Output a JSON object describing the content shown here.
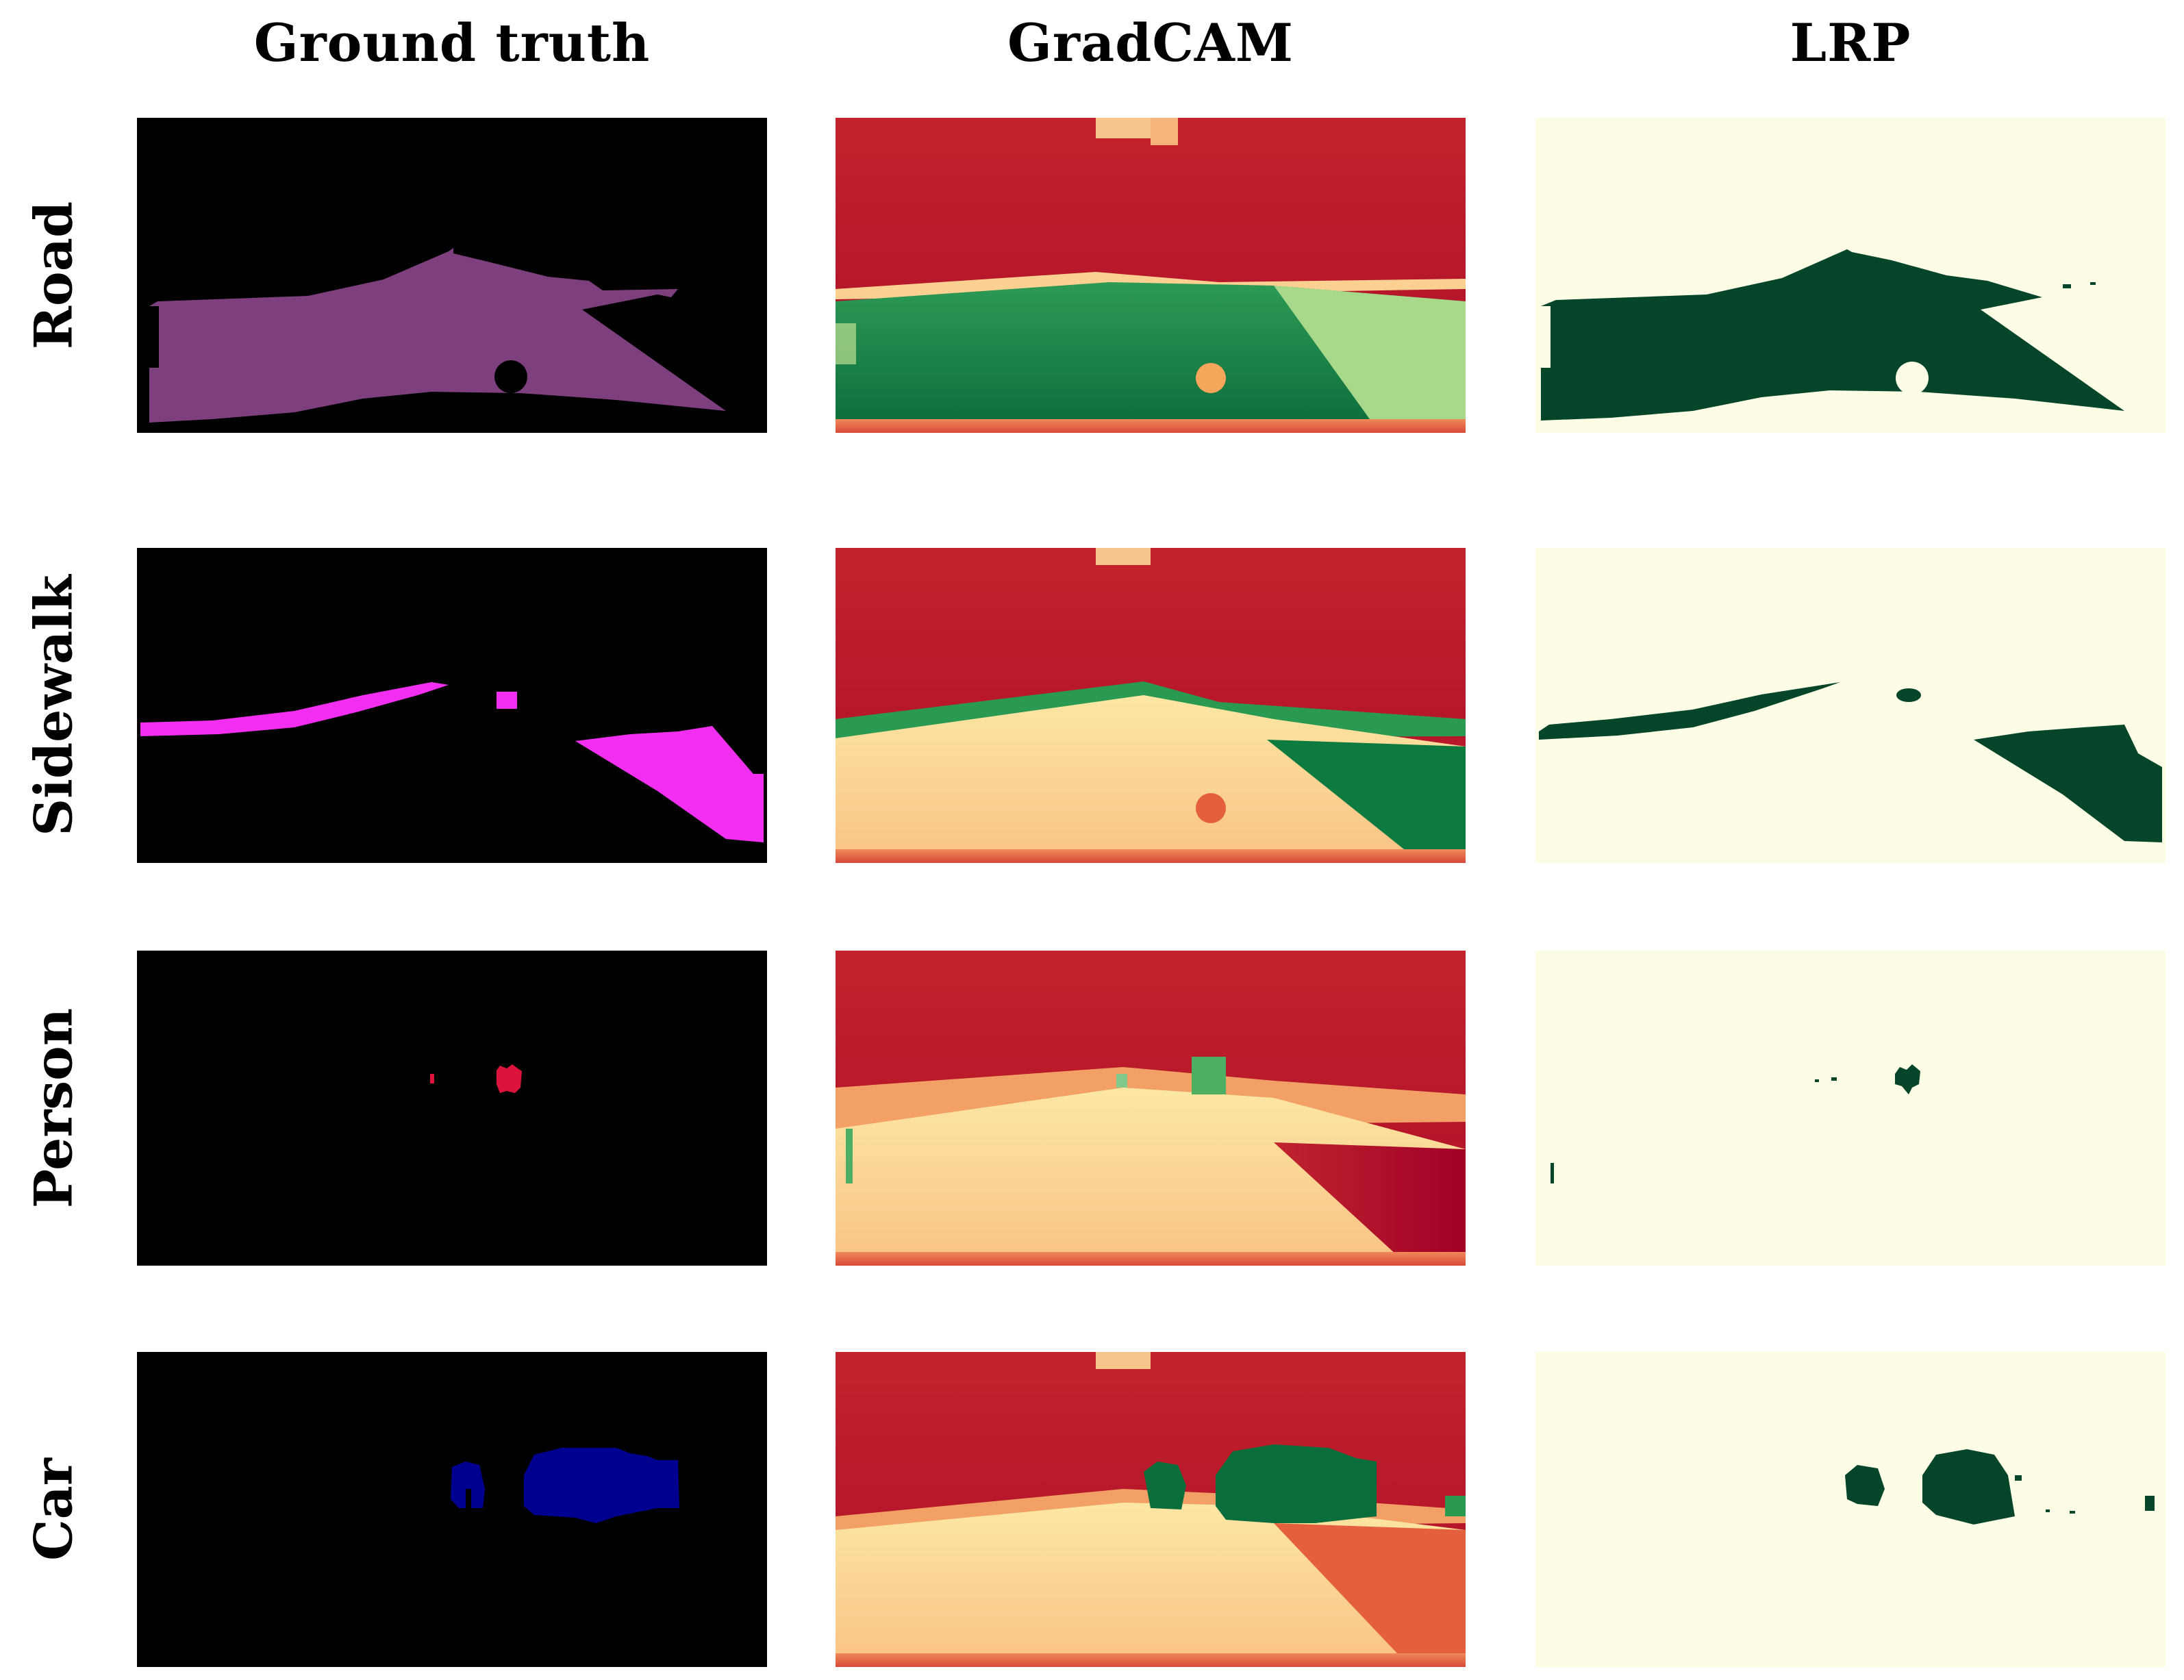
{
  "columns": [
    {
      "title": "Ground truth"
    },
    {
      "title": "GradCAM"
    },
    {
      "title": "LRP"
    }
  ],
  "rows": [
    {
      "label": "Road",
      "gt_color": "#7d3f7e"
    },
    {
      "label": "Sidewalk",
      "gt_color": "#f22ef0"
    },
    {
      "label": "Person",
      "gt_color": "#dc143c"
    },
    {
      "label": "Car",
      "gt_color": "#000090"
    }
  ],
  "colors": {
    "gt_background": "#000000",
    "lrp_background": "#fdfde6",
    "lrp_mask": "#05452a",
    "heat_high": "#a50026",
    "heat_mid": "#fee08b",
    "heat_low": "#006837"
  }
}
